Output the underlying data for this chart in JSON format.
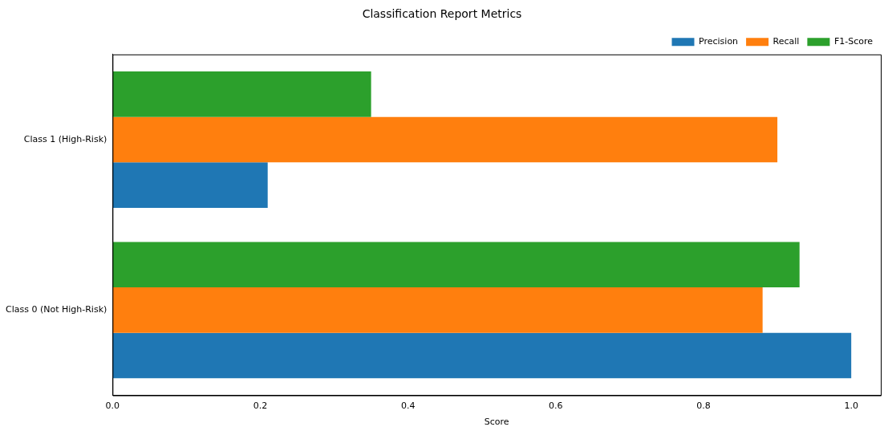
{
  "chart_data": {
    "type": "bar",
    "orientation": "horizontal",
    "title": "Classification Report Metrics",
    "xlabel": "Score",
    "categories": [
      "Class 1 (High-Risk)",
      "Class 0 (Not High-Risk)"
    ],
    "series": [
      {
        "name": "Precision",
        "color": "#1f77b4",
        "values": [
          0.21,
          1.0
        ]
      },
      {
        "name": "Recall",
        "color": "#ff7f0e",
        "values": [
          0.9,
          0.88
        ]
      },
      {
        "name": "F1-Score",
        "color": "#2ca02c",
        "values": [
          0.35,
          0.93
        ]
      }
    ],
    "xlim": [
      0,
      1.04
    ],
    "xticks": [
      {
        "value": 0,
        "label": "0.0"
      },
      0.2,
      0.4,
      0.6,
      0.8,
      {
        "value": 1,
        "label": "1.0"
      }
    ],
    "grid": false,
    "legend": "top right"
  }
}
